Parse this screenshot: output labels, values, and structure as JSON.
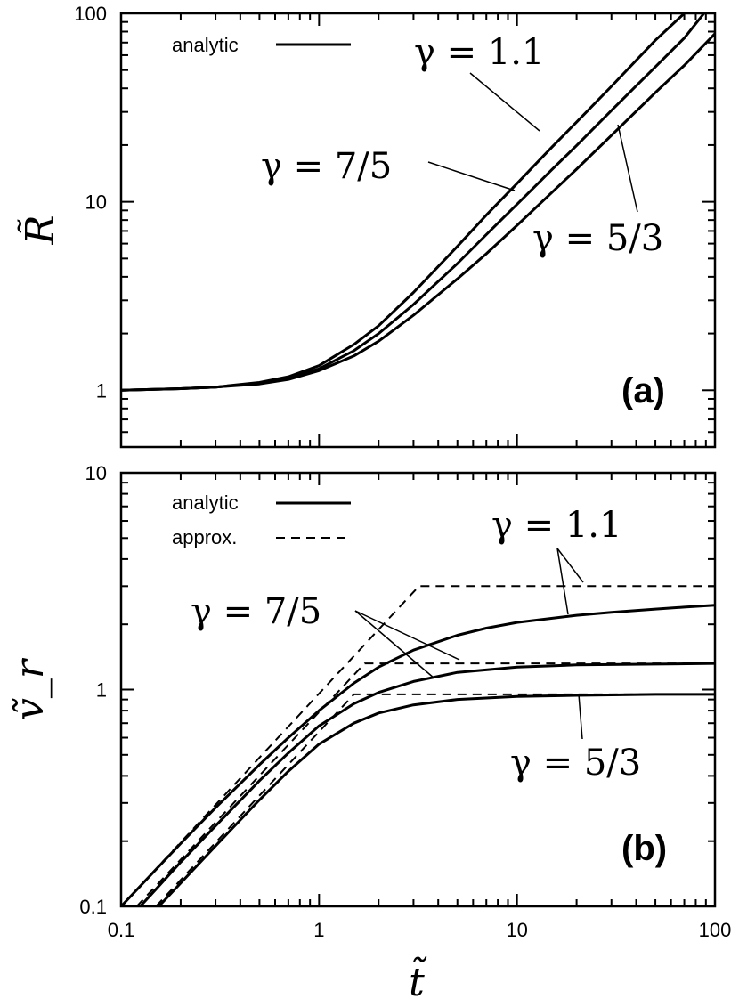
{
  "chart_data": [
    {
      "panel_label": "(a)",
      "type": "line",
      "xscale": "log",
      "yscale": "log",
      "xlim": [
        0.1,
        100
      ],
      "ylim": [
        0.5,
        100
      ],
      "xlabel": "t̃",
      "ylabel": "R̃",
      "xticks": [
        "0.1",
        "1",
        "10",
        "100"
      ],
      "yticks": [
        {
          "value": 1,
          "label": "1"
        },
        {
          "value": 10,
          "label": "10"
        },
        {
          "value": 100,
          "label": "100"
        }
      ],
      "legend": {
        "position": "top-left",
        "entries": [
          {
            "label": "analytic",
            "style": "solid"
          }
        ]
      },
      "series": [
        {
          "gamma": "1.1",
          "style": "solid",
          "x": [
            0.1,
            0.2,
            0.3,
            0.5,
            0.7,
            1,
            1.5,
            2,
            3,
            5,
            7,
            10,
            15,
            20,
            30,
            50,
            70
          ],
          "y": [
            1.0,
            1.02,
            1.04,
            1.1,
            1.18,
            1.35,
            1.75,
            2.2,
            3.3,
            5.8,
            8.5,
            12.5,
            19.5,
            26.5,
            41,
            72,
            100
          ]
        },
        {
          "gamma": "7/5",
          "style": "solid",
          "x": [
            0.1,
            0.2,
            0.3,
            0.5,
            0.7,
            1,
            1.5,
            2,
            3,
            5,
            7,
            10,
            15,
            20,
            30,
            50,
            70,
            88
          ],
          "y": [
            1.0,
            1.02,
            1.04,
            1.09,
            1.16,
            1.3,
            1.62,
            2.0,
            2.85,
            4.7,
            6.7,
            9.7,
            14.8,
            19.9,
            30.5,
            52,
            74,
            100
          ]
        },
        {
          "gamma": "5/3",
          "style": "solid",
          "x": [
            0.1,
            0.2,
            0.3,
            0.5,
            0.7,
            1,
            1.5,
            2,
            3,
            5,
            7,
            10,
            15,
            20,
            30,
            50,
            70,
            100
          ],
          "y": [
            1.0,
            1.02,
            1.04,
            1.08,
            1.14,
            1.27,
            1.52,
            1.82,
            2.5,
            3.9,
            5.3,
            7.5,
            11.2,
            14.9,
            22.5,
            38,
            53,
            78
          ]
        }
      ],
      "annotations": [
        {
          "gamma": "1.1",
          "text": "γ = 1.1"
        },
        {
          "gamma": "7/5",
          "text": "γ = 7/5"
        },
        {
          "gamma": "5/3",
          "text": "γ = 5/3"
        }
      ]
    },
    {
      "panel_label": "(b)",
      "type": "line",
      "xscale": "log",
      "yscale": "log",
      "xlim": [
        0.1,
        100
      ],
      "ylim": [
        0.1,
        10
      ],
      "xlabel": "t̃",
      "ylabel": "ṽ_r",
      "xticks": [
        "0.1",
        "1",
        "10",
        "100"
      ],
      "yticks": [
        {
          "value": 0.1,
          "label": "0.1"
        },
        {
          "value": 1,
          "label": "1"
        },
        {
          "value": 10,
          "label": "10"
        }
      ],
      "legend": {
        "position": "top-left",
        "entries": [
          {
            "label": "analytic",
            "style": "solid"
          },
          {
            "label": "approx.",
            "style": "dashed"
          }
        ]
      },
      "series": [
        {
          "gamma": "1.1",
          "style": "solid",
          "x": [
            0.1,
            0.15,
            0.2,
            0.3,
            0.5,
            0.7,
            1,
            1.5,
            2,
            3,
            5,
            7,
            10,
            20,
            30,
            50,
            70,
            100
          ],
          "y": [
            0.1,
            0.148,
            0.195,
            0.285,
            0.45,
            0.6,
            0.8,
            1.07,
            1.27,
            1.52,
            1.78,
            1.92,
            2.04,
            2.2,
            2.27,
            2.35,
            2.4,
            2.45
          ]
        },
        {
          "gamma": "7/5",
          "style": "solid",
          "x": [
            0.125,
            0.15,
            0.2,
            0.3,
            0.5,
            0.7,
            1,
            1.5,
            2,
            3,
            5,
            10,
            20,
            50,
            100
          ],
          "y": [
            0.1,
            0.12,
            0.16,
            0.235,
            0.38,
            0.51,
            0.68,
            0.86,
            0.97,
            1.09,
            1.2,
            1.27,
            1.3,
            1.31,
            1.32
          ]
        },
        {
          "gamma": "5/3",
          "style": "solid",
          "x": [
            0.155,
            0.2,
            0.3,
            0.5,
            0.7,
            1,
            1.5,
            2,
            3,
            5,
            10,
            20,
            50,
            100
          ],
          "y": [
            0.1,
            0.128,
            0.19,
            0.31,
            0.42,
            0.56,
            0.7,
            0.78,
            0.85,
            0.9,
            0.93,
            0.94,
            0.95,
            0.95
          ]
        },
        {
          "gamma": "1.1",
          "style": "dashed",
          "x": [
            0.1,
            3.2,
            100
          ],
          "y": [
            0.1,
            3.0,
            3.0
          ]
        },
        {
          "gamma": "7/5",
          "style": "dashed",
          "x": [
            0.12,
            1.7,
            100
          ],
          "y": [
            0.1,
            1.32,
            1.32
          ]
        },
        {
          "gamma": "5/3",
          "style": "dashed",
          "x": [
            0.15,
            1.5,
            100
          ],
          "y": [
            0.1,
            0.95,
            0.95
          ]
        }
      ],
      "annotations": [
        {
          "gamma": "1.1",
          "text": "γ = 1.1"
        },
        {
          "gamma": "7/5",
          "text": "γ = 7/5"
        },
        {
          "gamma": "5/3",
          "text": "γ = 5/3"
        }
      ]
    }
  ]
}
